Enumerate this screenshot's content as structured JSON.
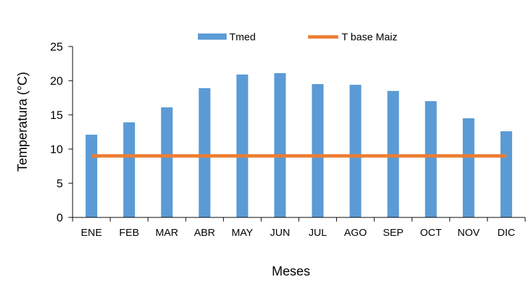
{
  "chart_data": {
    "type": "bar",
    "categories": [
      "ENE",
      "FEB",
      "MAR",
      "ABR",
      "MAY",
      "JUN",
      "JUL",
      "AGO",
      "SEP",
      "OCT",
      "NOV",
      "DIC"
    ],
    "series": [
      {
        "name": "Tmed",
        "type": "bar",
        "values": [
          12.1,
          13.9,
          16.1,
          18.9,
          20.9,
          21.1,
          19.5,
          19.4,
          18.5,
          17.0,
          14.5,
          12.6
        ],
        "color": "#5B9BD5"
      },
      {
        "name": "T base Maiz",
        "type": "line",
        "values": [
          9,
          9,
          9,
          9,
          9,
          9,
          9,
          9,
          9,
          9,
          9,
          9
        ],
        "color": "#ED7D31"
      }
    ],
    "xlabel": "Meses",
    "ylabel": "Temperatura (°C)",
    "ylim": [
      0,
      25
    ],
    "yticks": [
      0,
      5,
      10,
      15,
      20,
      25
    ],
    "grid": false,
    "legend_position": "top"
  }
}
